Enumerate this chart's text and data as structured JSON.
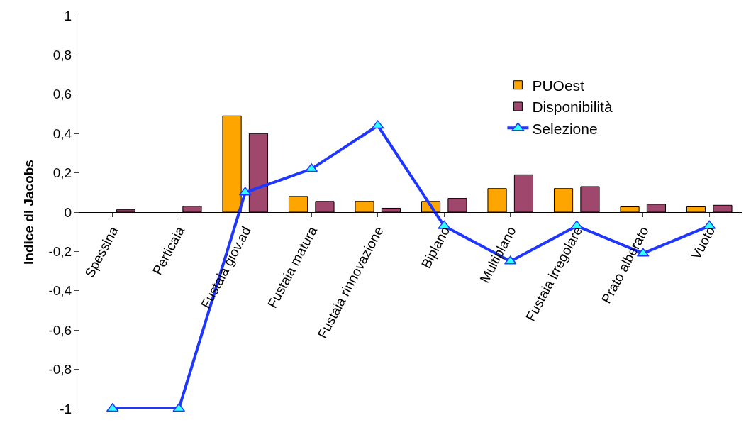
{
  "chart_data": {
    "type": "bar",
    "ylabel": "Indice di Jacobs",
    "categories": [
      "Spessina",
      "Perticaia",
      "Fustaia giov.ad",
      "Fustaia matura",
      "Fustaia rinnovazione",
      "Biplano",
      "Multiplano",
      "Fustaia irregolare",
      "Prato alberato",
      "Vuoto"
    ],
    "series": [
      {
        "name": "PUOest",
        "color": "#ffa500",
        "values": [
          null,
          null,
          0.49,
          0.08,
          0.055,
          0.055,
          0.12,
          0.12,
          0.027,
          0.027
        ]
      },
      {
        "name": "Disponibilità",
        "color": "#a0476e",
        "values": [
          0.012,
          0.03,
          0.4,
          0.055,
          0.02,
          0.07,
          0.19,
          0.13,
          0.04,
          0.035
        ]
      },
      {
        "name": "Selezione",
        "type": "line",
        "color": "#1f36ff",
        "marker": "triangle",
        "values": [
          -1,
          -1,
          0.1,
          0.22,
          0.44,
          -0.07,
          -0.25,
          -0.07,
          -0.21,
          -0.07
        ]
      }
    ],
    "ylim": [
      -1,
      1
    ],
    "yticks": [
      {
        "value": -1,
        "label": "-1"
      },
      {
        "value": -0.8,
        "label": "-0,8"
      },
      {
        "value": -0.6,
        "label": "-0,6"
      },
      {
        "value": -0.4,
        "label": "-0,4"
      },
      {
        "value": -0.2,
        "label": "-0,2"
      },
      {
        "value": 0,
        "label": "0"
      },
      {
        "value": 0.2,
        "label": "0,2"
      },
      {
        "value": 0.4,
        "label": "0,4"
      },
      {
        "value": 0.6,
        "label": "0,6"
      },
      {
        "value": 0.8,
        "label": "0,8"
      },
      {
        "value": 1,
        "label": "1"
      }
    ],
    "legend": "top right"
  }
}
